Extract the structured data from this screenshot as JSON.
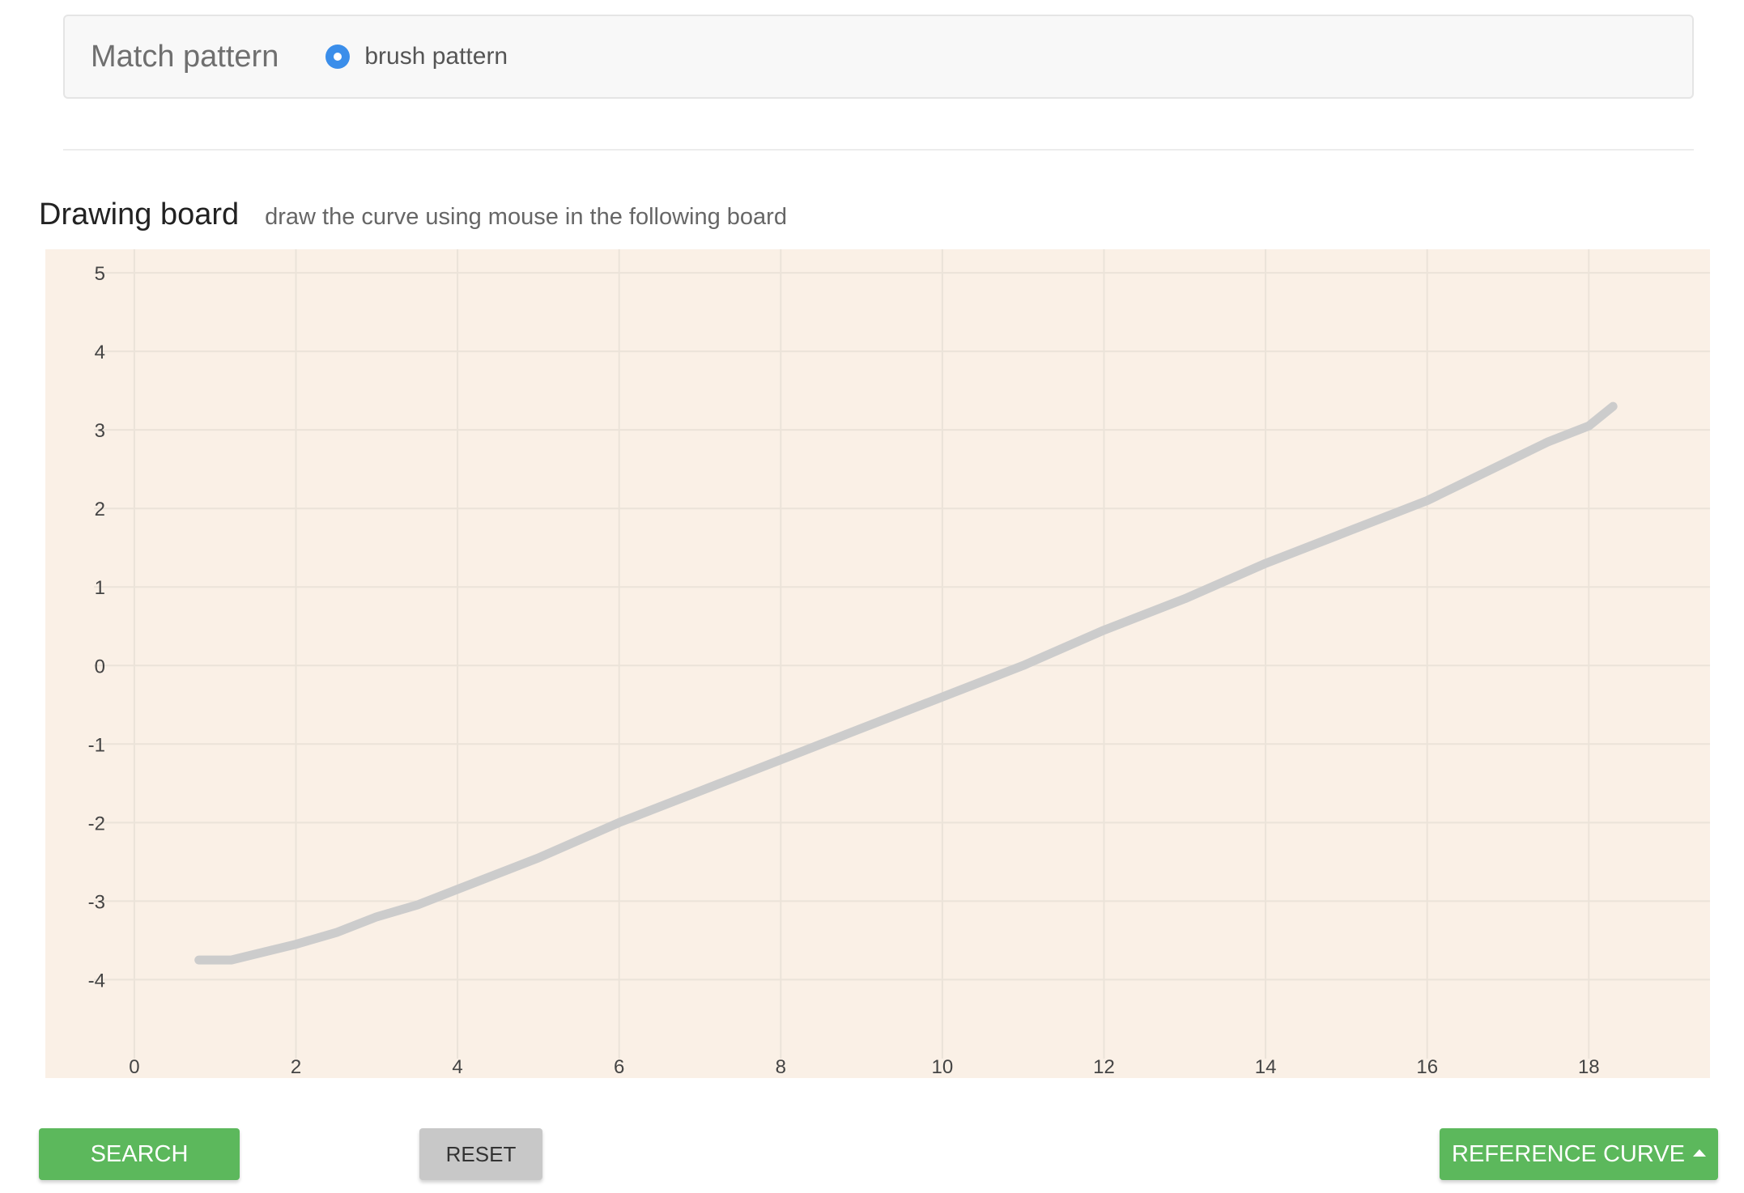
{
  "match": {
    "title": "Match pattern",
    "option_label": "brush pattern",
    "option_selected": true
  },
  "board": {
    "title": "Drawing board",
    "subtitle": "draw the curve using mouse in the following board"
  },
  "buttons": {
    "search": "SEARCH",
    "reset": "RESET",
    "reference_curve": "REFERENCE CURVE"
  },
  "colors": {
    "board_bg": "#faf0e6",
    "grid": "#ebe3d9",
    "curve": "#cccccc",
    "accent_green": "#5cb85c",
    "radio_blue": "#3b8eea"
  },
  "chart_data": {
    "type": "line",
    "x_ticks": [
      0,
      2,
      4,
      6,
      8,
      10,
      12,
      14,
      16,
      18
    ],
    "y_ticks": [
      5,
      4,
      3,
      2,
      1,
      0,
      -1,
      -2,
      -3,
      -4
    ],
    "xlim": [
      -0.5,
      19.5
    ],
    "ylim": [
      -4.8,
      5.3
    ],
    "grid": true,
    "series": [
      {
        "x": [
          0.8,
          1.2,
          1.6,
          2.0,
          2.5,
          3.0,
          3.5,
          4.0,
          5.0,
          6.0,
          7.0,
          8.0,
          9.0,
          10.0,
          11.0,
          12.0,
          13.0,
          14.0,
          15.0,
          16.0,
          17.0,
          17.5,
          18.0,
          18.3
        ],
        "y": [
          -3.75,
          -3.75,
          -3.65,
          -3.55,
          -3.4,
          -3.2,
          -3.05,
          -2.85,
          -2.45,
          -2.0,
          -1.6,
          -1.2,
          -0.8,
          -0.4,
          0.0,
          0.45,
          0.85,
          1.3,
          1.7,
          2.1,
          2.6,
          2.85,
          3.05,
          3.3
        ]
      }
    ]
  }
}
